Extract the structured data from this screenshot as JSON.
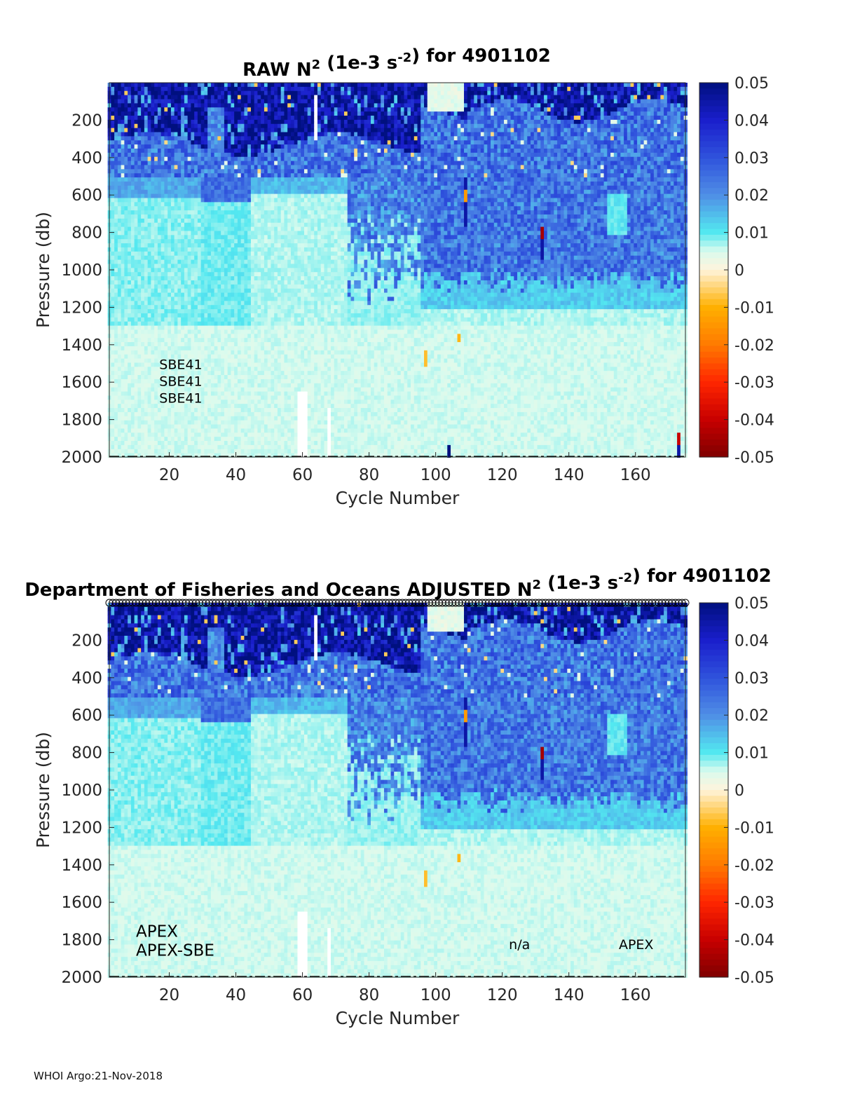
{
  "colors": {
    "background": "#ffffff",
    "axis": "#262626",
    "no_data": "#ffffff"
  },
  "colormap_stops": [
    [
      -0.05,
      "#7f0000"
    ],
    [
      -0.04,
      "#c80000"
    ],
    [
      -0.03,
      "#ff2600"
    ],
    [
      -0.02,
      "#ff7a00"
    ],
    [
      -0.01,
      "#ffb000"
    ],
    [
      0.0,
      "#fff4dc"
    ],
    [
      0.005,
      "#d9fbee"
    ],
    [
      0.01,
      "#53e8f0"
    ],
    [
      0.02,
      "#4f8ee6"
    ],
    [
      0.03,
      "#2f52dc"
    ],
    [
      0.04,
      "#1a1ecc"
    ],
    [
      0.05,
      "#00107f"
    ]
  ],
  "chart_data": [
    {
      "type": "heatmap",
      "id": "raw",
      "title_prefix": "RAW N",
      "title_sup": "2",
      "title_mid": " (1e-3 s",
      "title_sup2": "-2",
      "title_suffix": ") for 4901102",
      "xlabel": "Cycle Number",
      "ylabel": "Pressure (db)",
      "xlim": [
        2,
        175
      ],
      "ylim": [
        0,
        2000
      ],
      "xticks": [
        20,
        40,
        60,
        80,
        100,
        120,
        140,
        160
      ],
      "xtick_labels": [
        "20",
        "40",
        "60",
        "80",
        "100",
        "120",
        "140",
        "160"
      ],
      "yticks": [
        200,
        400,
        600,
        800,
        1000,
        1200,
        1400,
        1600,
        1800,
        2000
      ],
      "ytick_labels": [
        "200",
        "400",
        "600",
        "800",
        "1000",
        "1200",
        "1400",
        "1600",
        "1800",
        "2000"
      ],
      "clim": [
        -0.05,
        0.05
      ],
      "colorbar_ticks": [
        0.05,
        0.04,
        0.03,
        0.02,
        0.01,
        0,
        -0.01,
        -0.02,
        -0.03,
        -0.04,
        -0.05
      ],
      "colorbar_labels": [
        "0.05",
        "0.04",
        "0.03",
        "0.02",
        "0.01",
        "0",
        "-0.01",
        "-0.02",
        "-0.03",
        "-0.04",
        "-0.05"
      ],
      "annotations": [
        {
          "text": "SBE41",
          "cycle": 17,
          "pressure": 1500
        },
        {
          "text": "SBE41",
          "cycle": 17,
          "pressure": 1590
        },
        {
          "text": "SBE41",
          "cycle": 17,
          "pressure": 1680
        }
      ],
      "qc_markers": false,
      "note": "Heatmap of N² by cycle and pressure: strongly stratified (~0.05) in the upper 300 db, moderate (0.02–0.03) 400–1000 db east of cycle 75, weak (~0.005) below 1200 db; scattered small negatives."
    },
    {
      "type": "heatmap",
      "id": "adjusted",
      "title_prefix": "Department of Fisheries and Oceans  ADJUSTED N",
      "title_sup": "2",
      "title_mid": " (1e-3 s",
      "title_sup2": "-2",
      "title_suffix": ") for 4901102",
      "xlabel": "Cycle Number",
      "ylabel": "Pressure (db)",
      "xlim": [
        2,
        175
      ],
      "ylim": [
        0,
        2000
      ],
      "xticks": [
        20,
        40,
        60,
        80,
        100,
        120,
        140,
        160
      ],
      "xtick_labels": [
        "20",
        "40",
        "60",
        "80",
        "100",
        "120",
        "140",
        "160"
      ],
      "yticks": [
        200,
        400,
        600,
        800,
        1000,
        1200,
        1400,
        1600,
        1800,
        2000
      ],
      "ytick_labels": [
        "200",
        "400",
        "600",
        "800",
        "1000",
        "1200",
        "1400",
        "1600",
        "1800",
        "2000"
      ],
      "clim": [
        -0.05,
        0.05
      ],
      "colorbar_ticks": [
        0.05,
        0.04,
        0.03,
        0.02,
        0.01,
        0,
        -0.01,
        -0.02,
        -0.03,
        -0.04,
        -0.05
      ],
      "colorbar_labels": [
        "0.05",
        "0.04",
        "0.03",
        "0.02",
        "0.01",
        "0",
        "-0.01",
        "-0.02",
        "-0.03",
        "-0.04",
        "-0.05"
      ],
      "annotations": [
        {
          "text": "APEX",
          "cycle": 10,
          "pressure": 1755,
          "size": 23
        },
        {
          "text": "APEX-SBE",
          "cycle": 10,
          "pressure": 1855,
          "size": 23
        },
        {
          "text": "n/a",
          "cycle": 122,
          "pressure": 1820,
          "size": 19
        },
        {
          "text": "APEX",
          "cycle": 155,
          "pressure": 1820,
          "size": 19
        }
      ],
      "qc_markers": true,
      "note": "Same field after adjustment; open circles along the top mark profile QC flags."
    }
  ],
  "footer": {
    "text": "WHOI Argo:21-Nov-2018"
  }
}
